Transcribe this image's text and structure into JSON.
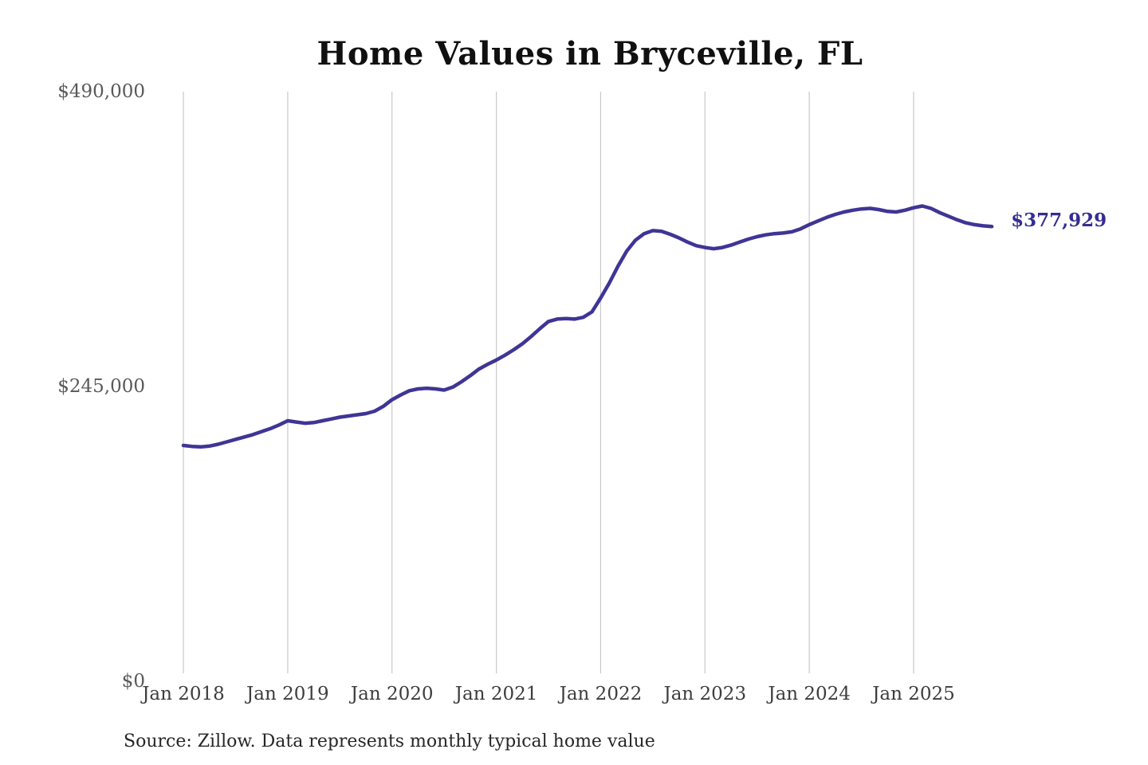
{
  "chart": {
    "title": "Home Values in Bryceville, FL",
    "source_note": "Source: Zillow. Data represents monthly typical home value",
    "end_label": "$377,929",
    "line_color": "#3e3596",
    "end_label_color": "#342d91",
    "grid_color": "#c9c9c9",
    "y_label_color": "#595959",
    "x_label_color": "#3d3d3d",
    "title_color": "#101010",
    "source_color": "#262626",
    "background_color": "#ffffff"
  },
  "chart_data": {
    "type": "line",
    "title": "Home Values in Bryceville, FL",
    "xlabel": "",
    "ylabel": "",
    "ylim": [
      0,
      490000
    ],
    "grid": "vertical-only",
    "legend": "none",
    "annotation": {
      "text": "$377,929",
      "value": 377929,
      "position": "line-end"
    },
    "y_ticks": [
      {
        "label": "$0",
        "value": 0
      },
      {
        "label": "$245,000",
        "value": 245000
      },
      {
        "label": "$490,000",
        "value": 490000
      }
    ],
    "x_ticks": [
      {
        "label": "Jan 2018",
        "month_index": 0
      },
      {
        "label": "Jan 2019",
        "month_index": 12
      },
      {
        "label": "Jan 2020",
        "month_index": 24
      },
      {
        "label": "Jan 2021",
        "month_index": 36
      },
      {
        "label": "Jan 2022",
        "month_index": 48
      },
      {
        "label": "Jan 2023",
        "month_index": 60
      },
      {
        "label": "Jan 2024",
        "month_index": 72
      },
      {
        "label": "Jan 2025",
        "month_index": 84
      }
    ],
    "x": [
      "2018-01",
      "2018-02",
      "2018-03",
      "2018-04",
      "2018-05",
      "2018-06",
      "2018-07",
      "2018-08",
      "2018-09",
      "2018-10",
      "2018-11",
      "2018-12",
      "2019-01",
      "2019-02",
      "2019-03",
      "2019-04",
      "2019-05",
      "2019-06",
      "2019-07",
      "2019-08",
      "2019-09",
      "2019-10",
      "2019-11",
      "2019-12",
      "2020-01",
      "2020-02",
      "2020-03",
      "2020-04",
      "2020-05",
      "2020-06",
      "2020-07",
      "2020-08",
      "2020-09",
      "2020-10",
      "2020-11",
      "2020-12",
      "2021-01",
      "2021-02",
      "2021-03",
      "2021-04",
      "2021-05",
      "2021-06",
      "2021-07",
      "2021-08",
      "2021-09",
      "2021-10",
      "2021-11",
      "2021-12",
      "2022-01",
      "2022-02",
      "2022-03",
      "2022-04",
      "2022-05",
      "2022-06",
      "2022-07",
      "2022-08",
      "2022-09",
      "2022-10",
      "2022-11",
      "2022-12",
      "2023-01",
      "2023-02",
      "2023-03",
      "2023-04",
      "2023-05",
      "2023-06",
      "2023-07",
      "2023-08",
      "2023-09",
      "2023-10",
      "2023-11",
      "2023-12",
      "2024-01",
      "2024-02",
      "2024-03",
      "2024-04",
      "2024-05",
      "2024-06",
      "2024-07",
      "2024-08",
      "2024-09",
      "2024-10",
      "2024-11",
      "2024-12",
      "2025-01",
      "2025-02",
      "2025-03",
      "2025-04",
      "2025-05",
      "2025-06",
      "2025-07",
      "2025-08",
      "2025-09",
      "2025-10"
    ],
    "series": [
      {
        "name": "Monthly typical home value",
        "values": [
          196000,
          195200,
          194800,
          195500,
          197000,
          199000,
          201000,
          203000,
          205000,
          207500,
          210000,
          213000,
          216500,
          215500,
          214500,
          215000,
          216500,
          218000,
          219500,
          220500,
          221500,
          222500,
          224500,
          228500,
          234000,
          238000,
          241500,
          243000,
          243500,
          243000,
          242000,
          244500,
          249000,
          254000,
          259500,
          263500,
          267000,
          271000,
          275500,
          280500,
          286500,
          293000,
          299000,
          301000,
          301500,
          301000,
          302500,
          307000,
          318500,
          331000,
          345000,
          357500,
          366500,
          372000,
          374500,
          374000,
          371500,
          368500,
          365000,
          362000,
          360500,
          359500,
          360500,
          362500,
          365000,
          367500,
          369500,
          371000,
          372000,
          372500,
          373500,
          376000,
          379500,
          382500,
          385500,
          388000,
          390000,
          391500,
          392500,
          393000,
          392000,
          390500,
          390000,
          391500,
          393500,
          395000,
          393000,
          389500,
          386500,
          383500,
          381000,
          379500,
          378500,
          377929
        ]
      }
    ]
  }
}
